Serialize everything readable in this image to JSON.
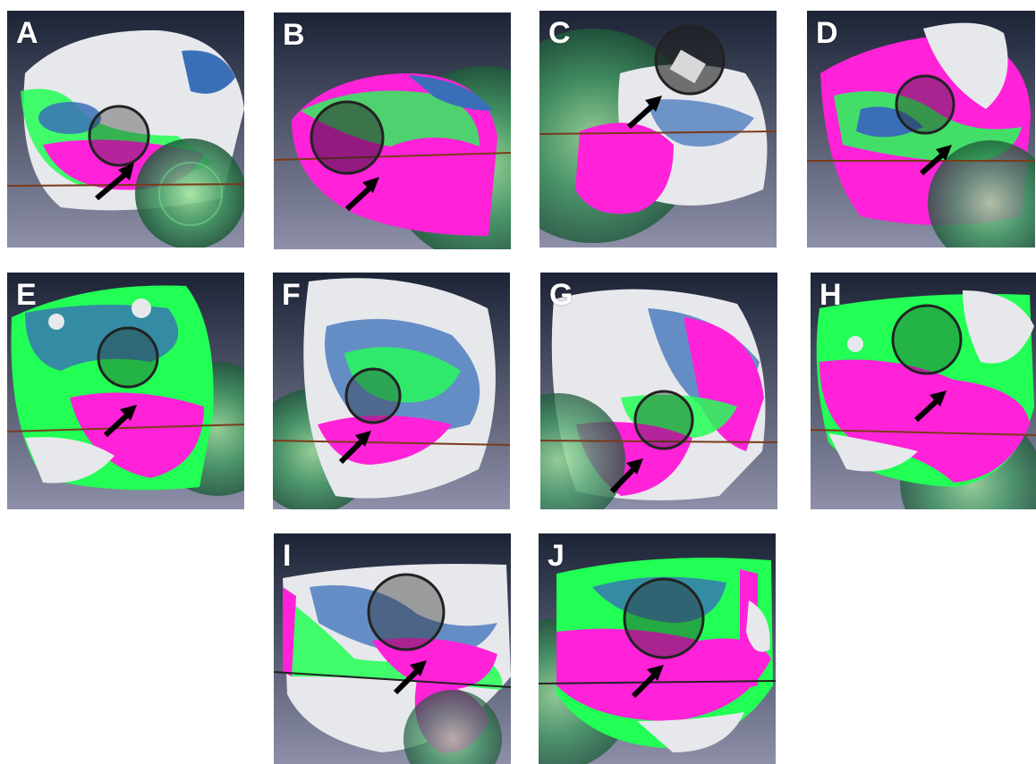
{
  "figure": {
    "panels": [
      {
        "label": "A"
      },
      {
        "label": "B"
      },
      {
        "label": "C"
      },
      {
        "label": "D"
      },
      {
        "label": "E"
      },
      {
        "label": "F"
      },
      {
        "label": "G"
      },
      {
        "label": "H"
      },
      {
        "label": "I"
      },
      {
        "label": "J"
      }
    ]
  },
  "colors": {
    "background_top": "#1c2335",
    "background_bottom": "#8d90a8",
    "magenta": "#ff22d8",
    "green": "#22ff55",
    "blue": "#3a6fb8",
    "white_surface": "#e6e8ec",
    "sphere_green": "#2f8a55",
    "arrow": "#000000",
    "plane_line": "#7a3b1a"
  }
}
